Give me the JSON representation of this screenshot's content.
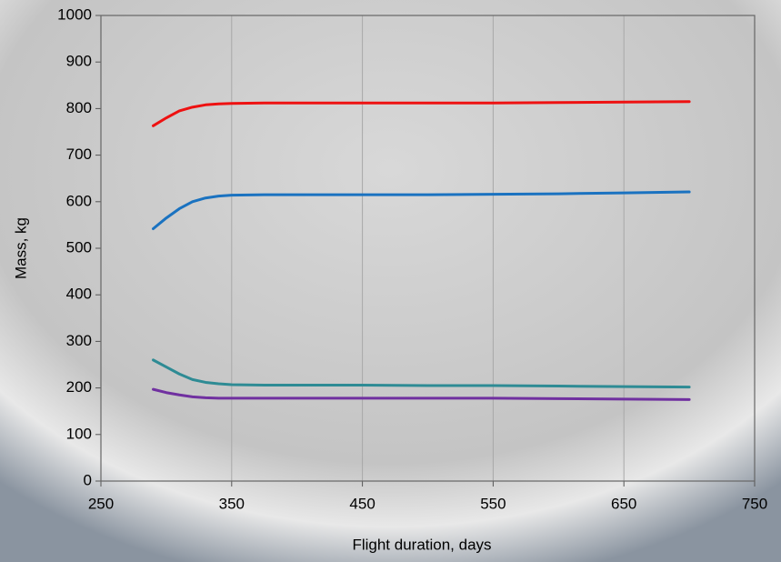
{
  "chart_data": {
    "type": "line",
    "xlabel": "Flight duration, days",
    "ylabel": "Mass, kg",
    "x": [
      290,
      300,
      310,
      320,
      330,
      340,
      350,
      375,
      400,
      450,
      500,
      550,
      600,
      650,
      700
    ],
    "series": [
      {
        "color": "#ee1111",
        "values": [
          763,
          780,
          795,
          803,
          808,
          810,
          811,
          812,
          812,
          812,
          812,
          812,
          813,
          814,
          815
        ]
      },
      {
        "color": "#1a72c0",
        "values": [
          542,
          565,
          585,
          600,
          608,
          612,
          614,
          615,
          615,
          615,
          615,
          616,
          617,
          619,
          621
        ]
      },
      {
        "color": "#2e8b94",
        "values": [
          260,
          245,
          230,
          218,
          212,
          209,
          207,
          206,
          206,
          206,
          205,
          205,
          204,
          203,
          202
        ]
      },
      {
        "color": "#7030a0",
        "values": [
          197,
          190,
          185,
          181,
          179,
          178,
          178,
          178,
          178,
          178,
          178,
          178,
          177,
          176,
          175
        ]
      }
    ],
    "xlim": [
      250,
      750
    ],
    "xticks": [
      250,
      350,
      450,
      550,
      650,
      750
    ],
    "ylim": [
      0,
      1000
    ],
    "yticks": [
      0,
      100,
      200,
      300,
      400,
      500,
      600,
      700,
      800,
      900,
      1000
    ],
    "grid": true
  }
}
